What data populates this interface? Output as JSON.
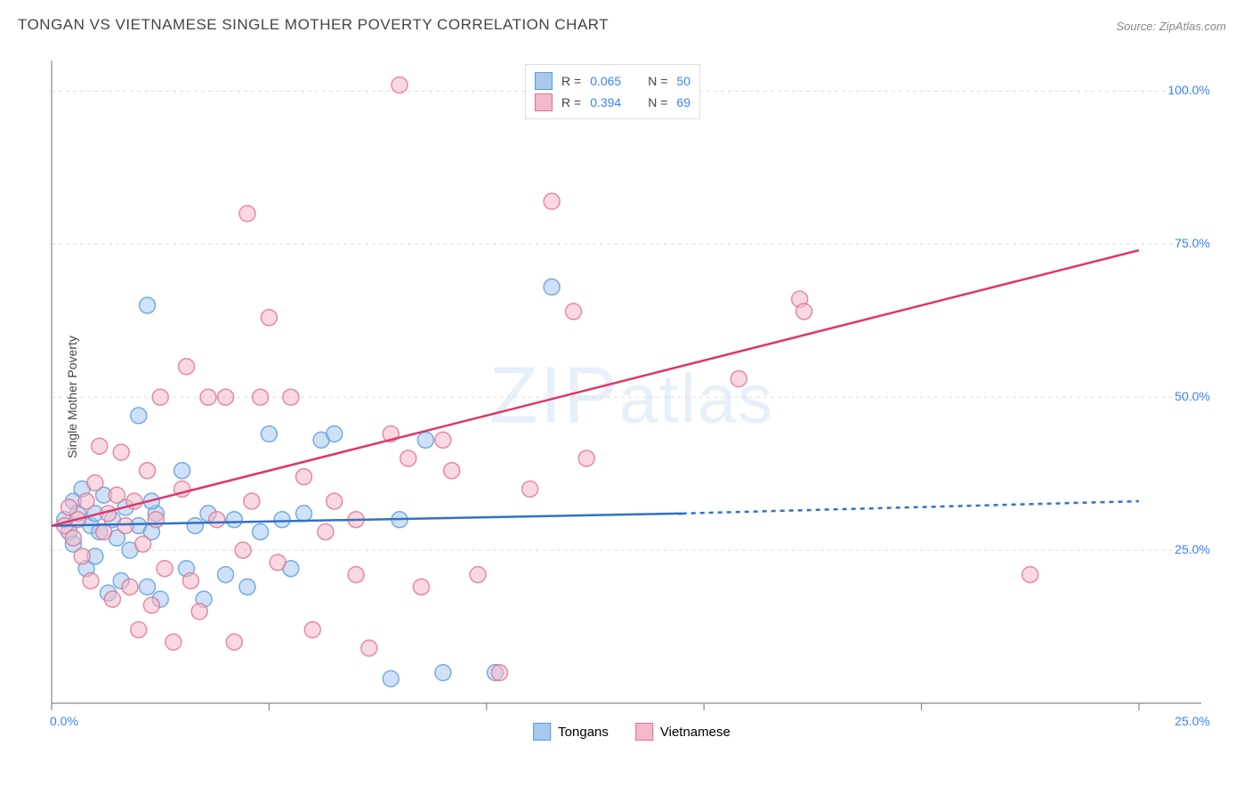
{
  "title": "TONGAN VS VIETNAMESE SINGLE MOTHER POVERTY CORRELATION CHART",
  "source": "Source: ZipAtlas.com",
  "y_axis_label": "Single Mother Poverty",
  "watermark": {
    "part1": "ZIP",
    "part2": "atlas"
  },
  "chart": {
    "type": "scatter",
    "background_color": "#ffffff",
    "grid_color": "#dddddd",
    "axis_color": "#888888",
    "tick_label_color": "#3b82f6",
    "xlim": [
      0,
      25
    ],
    "ylim": [
      0,
      105
    ],
    "x_ticks": [
      0,
      5,
      10,
      15,
      20,
      25
    ],
    "x_tick_labels": [
      "0.0%",
      "",
      "",
      "",
      "",
      "25.0%"
    ],
    "y_ticks": [
      25,
      50,
      75,
      100
    ],
    "y_tick_labels": [
      "25.0%",
      "50.0%",
      "75.0%",
      "100.0%"
    ],
    "marker_radius": 9,
    "marker_opacity": 0.55,
    "series": [
      {
        "name": "Tongans",
        "fill_color": "#a8c8f0",
        "stroke_color": "#5a9bd8",
        "R": "0.065",
        "N": "50",
        "trend": {
          "x1": 0,
          "y1": 29,
          "x2": 14.5,
          "y2": 31,
          "x2_dash": 25,
          "y2_dash": 33,
          "color": "#2f72c7",
          "width": 2.5,
          "dash": "5,5"
        },
        "points": [
          [
            0.3,
            30
          ],
          [
            0.4,
            28
          ],
          [
            0.5,
            33
          ],
          [
            0.5,
            26
          ],
          [
            0.6,
            31
          ],
          [
            0.7,
            35
          ],
          [
            0.8,
            22
          ],
          [
            0.9,
            29
          ],
          [
            1.0,
            24
          ],
          [
            1.0,
            31
          ],
          [
            1.1,
            28
          ],
          [
            1.2,
            34
          ],
          [
            1.3,
            18
          ],
          [
            1.4,
            30
          ],
          [
            1.5,
            27
          ],
          [
            1.6,
            20
          ],
          [
            1.7,
            32
          ],
          [
            1.8,
            25
          ],
          [
            2.0,
            47
          ],
          [
            2.0,
            29
          ],
          [
            2.2,
            19
          ],
          [
            2.3,
            28
          ],
          [
            2.4,
            31
          ],
          [
            2.5,
            17
          ],
          [
            2.2,
            65
          ],
          [
            2.3,
            33
          ],
          [
            3.0,
            38
          ],
          [
            3.1,
            22
          ],
          [
            3.3,
            29
          ],
          [
            3.5,
            17
          ],
          [
            3.6,
            31
          ],
          [
            4.0,
            21
          ],
          [
            4.2,
            30
          ],
          [
            4.5,
            19
          ],
          [
            4.8,
            28
          ],
          [
            5.0,
            44
          ],
          [
            5.3,
            30
          ],
          [
            5.5,
            22
          ],
          [
            5.8,
            31
          ],
          [
            6.2,
            43
          ],
          [
            6.5,
            44
          ],
          [
            7.8,
            4
          ],
          [
            8.6,
            43
          ],
          [
            9.0,
            5
          ],
          [
            10.2,
            5
          ],
          [
            11.5,
            68
          ],
          [
            8.0,
            30
          ]
        ]
      },
      {
        "name": "Vietnamese",
        "fill_color": "#f5b8c8",
        "stroke_color": "#e07090",
        "R": "0.394",
        "N": "69",
        "trend": {
          "x1": 0,
          "y1": 29,
          "x2": 25,
          "y2": 74,
          "color": "#e03565",
          "width": 2.5
        },
        "points": [
          [
            0.3,
            29
          ],
          [
            0.4,
            32
          ],
          [
            0.5,
            27
          ],
          [
            0.6,
            30
          ],
          [
            0.7,
            24
          ],
          [
            0.8,
            33
          ],
          [
            0.9,
            20
          ],
          [
            1.0,
            36
          ],
          [
            1.1,
            42
          ],
          [
            1.2,
            28
          ],
          [
            1.3,
            31
          ],
          [
            1.4,
            17
          ],
          [
            1.5,
            34
          ],
          [
            1.6,
            41
          ],
          [
            1.7,
            29
          ],
          [
            1.8,
            19
          ],
          [
            1.9,
            33
          ],
          [
            2.0,
            12
          ],
          [
            2.1,
            26
          ],
          [
            2.2,
            38
          ],
          [
            2.3,
            16
          ],
          [
            2.4,
            30
          ],
          [
            2.5,
            50
          ],
          [
            2.6,
            22
          ],
          [
            2.8,
            10
          ],
          [
            3.0,
            35
          ],
          [
            3.1,
            55
          ],
          [
            3.2,
            20
          ],
          [
            3.4,
            15
          ],
          [
            3.6,
            50
          ],
          [
            3.8,
            30
          ],
          [
            4.0,
            50
          ],
          [
            4.2,
            10
          ],
          [
            4.4,
            25
          ],
          [
            4.6,
            33
          ],
          [
            4.5,
            80
          ],
          [
            4.8,
            50
          ],
          [
            5.0,
            63
          ],
          [
            5.2,
            23
          ],
          [
            5.5,
            50
          ],
          [
            5.8,
            37
          ],
          [
            6.0,
            12
          ],
          [
            6.3,
            28
          ],
          [
            6.5,
            33
          ],
          [
            7.0,
            21
          ],
          [
            7.3,
            9
          ],
          [
            7.0,
            30
          ],
          [
            7.8,
            44
          ],
          [
            8.0,
            101
          ],
          [
            8.2,
            40
          ],
          [
            8.5,
            19
          ],
          [
            9.0,
            43
          ],
          [
            9.2,
            38
          ],
          [
            9.8,
            21
          ],
          [
            10.3,
            5
          ],
          [
            11.0,
            35
          ],
          [
            11.5,
            82
          ],
          [
            12.0,
            64
          ],
          [
            12.3,
            40
          ],
          [
            15.8,
            53
          ],
          [
            17.2,
            66
          ],
          [
            17.3,
            64
          ],
          [
            22.5,
            21
          ]
        ]
      }
    ],
    "legend_top": {
      "border_color": "#dddddd",
      "bg_color": "#ffffff"
    },
    "legend_bottom_items": [
      "Tongans",
      "Vietnamese"
    ]
  }
}
